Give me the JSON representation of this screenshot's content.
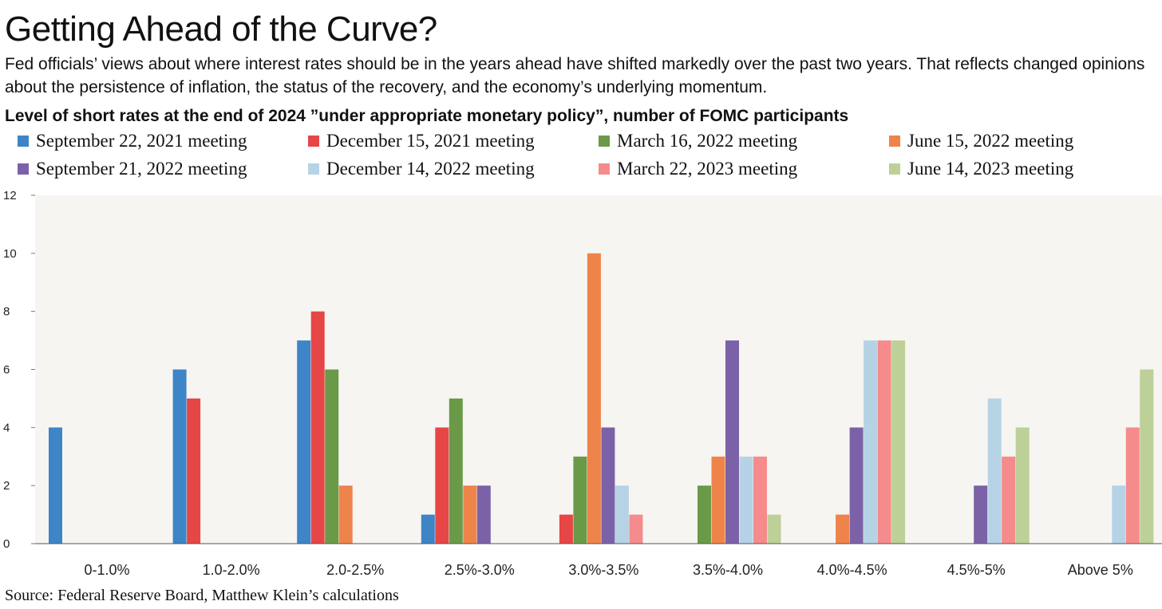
{
  "header": {
    "title": "Getting Ahead of the Curve?",
    "subtitle": "Fed officials’ views about where interest rates should be in the years ahead have shifted markedly over the past two years. That reflects changed opinions about the persistence of inflation, the status of the recovery, and the economy’s underlying momentum.",
    "chart_heading": "Level of short rates at the end of 2024 ”under appropriate monetary policy”, number of FOMC participants"
  },
  "footer": {
    "source": "Source: Federal Reserve Board, Matthew Klein’s calculations"
  },
  "chart_data": {
    "type": "bar",
    "title": "Getting Ahead of the Curve?",
    "categories": [
      "0-1.0%",
      "1.0-2.0%",
      "2.0-2.5%",
      "2.5%-3.0%",
      "3.0%-3.5%",
      "3.5%-4.0%",
      "4.0%-4.5%",
      "4.5%-5%",
      "Above 5%"
    ],
    "ylim": [
      0,
      12
    ],
    "yticks": [
      0,
      2,
      4,
      6,
      8,
      10,
      12
    ],
    "grid": false,
    "legend_position": "top",
    "series": [
      {
        "name": "September 22, 2021 meeting",
        "color": "#3d85c6",
        "values": [
          4,
          6,
          7,
          1,
          0,
          0,
          0,
          0,
          0
        ]
      },
      {
        "name": "December 15, 2021 meeting",
        "color": "#e64646",
        "values": [
          0,
          5,
          8,
          4,
          1,
          0,
          0,
          0,
          0
        ]
      },
      {
        "name": "March 16, 2022 meeting",
        "color": "#6a9a48",
        "values": [
          0,
          0,
          6,
          5,
          3,
          2,
          0,
          0,
          0
        ]
      },
      {
        "name": "June 15, 2022 meeting",
        "color": "#ee8449",
        "values": [
          0,
          0,
          2,
          2,
          10,
          3,
          1,
          0,
          0
        ]
      },
      {
        "name": "September 21, 2022 meeting",
        "color": "#7b62a8",
        "values": [
          0,
          0,
          0,
          2,
          4,
          7,
          4,
          2,
          0
        ]
      },
      {
        "name": "December 14, 2022 meeting",
        "color": "#b6d3e6",
        "values": [
          0,
          0,
          0,
          0,
          2,
          3,
          7,
          5,
          2
        ]
      },
      {
        "name": "March 22, 2023 meeting",
        "color": "#f58b8b",
        "values": [
          0,
          0,
          0,
          0,
          1,
          3,
          7,
          3,
          4
        ]
      },
      {
        "name": "June 14, 2023 meeting",
        "color": "#bcd098",
        "values": [
          0,
          0,
          0,
          0,
          0,
          1,
          7,
          4,
          6
        ]
      }
    ]
  }
}
